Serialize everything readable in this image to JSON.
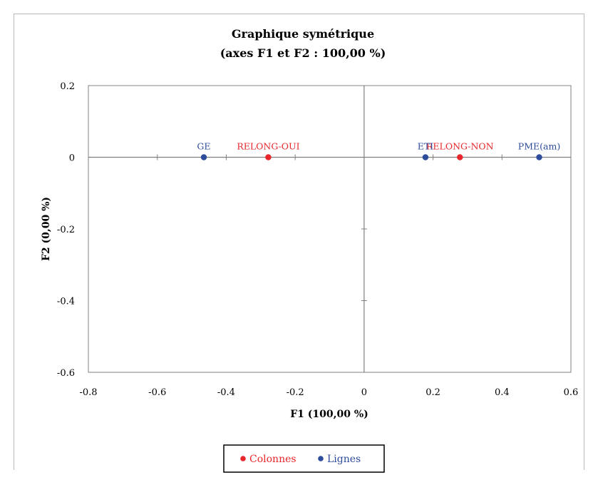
{
  "chart_data": {
    "type": "scatter",
    "title_line1": "Graphique symétrique",
    "title_line2": "(axes F1 et F2 : 100,00 %)",
    "xlabel": "F1 (100,00 %)",
    "ylabel": "F2 (0,00 %)",
    "xlim": [
      -0.8,
      0.6
    ],
    "ylim": [
      -0.6,
      0.2
    ],
    "x_ticks": [
      -0.8,
      -0.6,
      -0.4,
      -0.2,
      0,
      0.2,
      0.4,
      0.6
    ],
    "y_ticks": [
      0.2,
      0,
      -0.2,
      -0.4,
      -0.6
    ],
    "x_tick_labels": [
      "-0.8",
      "-0.6",
      "-0.4",
      "-0.2",
      "0",
      "0.2",
      "0.4",
      "0.6"
    ],
    "y_tick_labels": [
      "0.2",
      "0",
      "-0.2",
      "-0.4",
      "-0.6"
    ],
    "grid": false,
    "legend_position": "bottom",
    "series": [
      {
        "name": "Colonnes",
        "color": "#e8262b",
        "points": [
          {
            "label": "RELONG-OUI",
            "x": -0.278,
            "y": 0
          },
          {
            "label": "RELONG-NON",
            "x": 0.278,
            "y": 0
          }
        ]
      },
      {
        "name": "Lignes",
        "color": "#2e4c9c",
        "points": [
          {
            "label": "GE",
            "x": -0.465,
            "y": 0
          },
          {
            "label": "ETI",
            "x": 0.178,
            "y": 0
          },
          {
            "label": "PME(am)",
            "x": 0.508,
            "y": 0
          }
        ]
      }
    ]
  }
}
